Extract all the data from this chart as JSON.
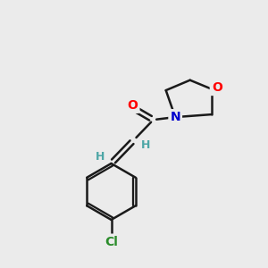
{
  "bg_color": "#ebebeb",
  "bond_color": "#1a1a1a",
  "bond_width": 1.8,
  "atom_colors": {
    "O_carbonyl": "#ff0000",
    "O_ring": "#ff0000",
    "N": "#0000cc",
    "Cl": "#2a8c2a",
    "H": "#4da6a6",
    "C": "#1a1a1a"
  },
  "font_size_atom": 10,
  "font_size_H": 9,
  "font_size_Cl": 10
}
